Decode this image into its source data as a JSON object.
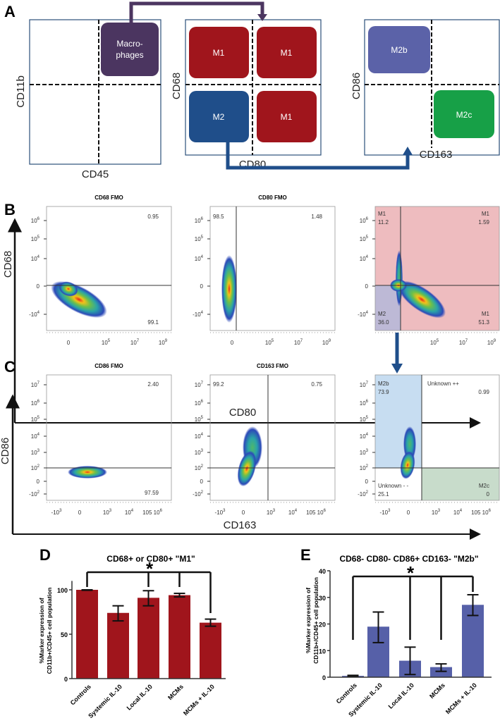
{
  "panel_a": {
    "label": "A",
    "gate1": {
      "ylabel": "CD11b",
      "xlabel": "CD45",
      "box": "Macro-\nphages"
    },
    "gate2": {
      "ylabel": "CD68",
      "xlabel": "CD80",
      "boxes": [
        "M1",
        "M1",
        "M2",
        "M1"
      ]
    },
    "gate3": {
      "ylabel": "CD86",
      "xlabel": "CD163",
      "boxes": [
        "M2b",
        "M2c"
      ]
    },
    "colors": {
      "macrophage": "#4b3560",
      "m1": "#a0151c",
      "m2": "#1f4e8a",
      "m2b": "#5b62a8",
      "m2c": "#17a047"
    }
  },
  "panel_b": {
    "label": "B",
    "ylabel": "CD68",
    "xlabel": "CD80",
    "yticks": [
      [
        "10",
        "6"
      ],
      [
        "10",
        "5"
      ],
      [
        "10",
        "4"
      ],
      [
        "0",
        ""
      ],
      [
        "-10",
        "4"
      ]
    ],
    "xticks": [
      [
        "0",
        ""
      ],
      [
        "10",
        "5"
      ],
      [
        "10",
        "7"
      ],
      [
        "10",
        "9"
      ]
    ],
    "plots": [
      {
        "title": "CD68 FMO",
        "q": [
          "0.95",
          "99.1"
        ]
      },
      {
        "title": "CD80 FMO",
        "q": [
          "98.5",
          "1.48"
        ]
      },
      {
        "title": "",
        "q": [
          "M1",
          "11.2",
          "M1",
          "1.59",
          "M2",
          "36.0",
          "M1",
          "51.3"
        ]
      }
    ]
  },
  "panel_c": {
    "label": "C",
    "ylabel": "CD86",
    "xlabel": "CD163",
    "yticks": [
      [
        "10",
        "7"
      ],
      [
        "10",
        "6"
      ],
      [
        "10",
        "5"
      ],
      [
        "10",
        "4"
      ],
      [
        "10",
        "3"
      ],
      [
        "10",
        "2"
      ],
      [
        "0",
        ""
      ],
      [
        "-10",
        "2"
      ]
    ],
    "xticks": [
      [
        "-10",
        "3"
      ],
      [
        "0",
        ""
      ],
      [
        "10",
        "3"
      ],
      [
        "10",
        "4"
      ],
      [
        "10",
        "5"
      ],
      [
        "10",
        "6"
      ]
    ],
    "plots": [
      {
        "title": "CD86 FMO",
        "q": [
          "2.40",
          "97.59"
        ]
      },
      {
        "title": "CD163 FMO",
        "q": [
          "99.2",
          "0.75"
        ]
      },
      {
        "title": "",
        "q": [
          "M2b",
          "73.9",
          "Unknown ++",
          "0.99",
          "Unknown - -",
          "25.1",
          "M2c",
          "0"
        ]
      }
    ]
  },
  "chart_data": [
    {
      "panel": "D",
      "type": "bar",
      "title": "CD68+ or CD80+ \"M1\"",
      "ylabel": "%Marker expression of\nCD11b+/CD45+ cell population",
      "categories": [
        "Controls",
        "Systemic IL-10",
        "Local IL-10",
        "MCMs",
        "MCMs + IL-10"
      ],
      "values": [
        100,
        74,
        91,
        94,
        63
      ],
      "err_low": [
        99.5,
        65,
        82,
        92,
        59
      ],
      "err_high": [
        100,
        82,
        99,
        96,
        67
      ],
      "ylim": [
        0,
        110
      ],
      "yticks": [
        0,
        50,
        100
      ],
      "color": "#a0151c",
      "significance": {
        "marker": "*",
        "groups": [
          0,
          2,
          3,
          4
        ]
      }
    },
    {
      "panel": "E",
      "type": "bar",
      "title": "CD68- CD80- CD86+ CD163- \"M2b\"",
      "ylabel": "%Marker expression of\nCD11b+/CD45+ cell population",
      "categories": [
        "Controls",
        "Systemic IL-10",
        "Local IL-10",
        "MCMs",
        "MCMs + IL-10"
      ],
      "values": [
        0.5,
        19,
        6.2,
        3.8,
        27.2
      ],
      "err_low": [
        0.3,
        13,
        1,
        2.2,
        23.2
      ],
      "err_high": [
        0.7,
        24.5,
        11.3,
        5,
        31
      ],
      "ylim": [
        0,
        40
      ],
      "yticks": [
        0,
        10,
        20,
        30,
        40
      ],
      "color": "#5660a8",
      "significance": {
        "marker": "*",
        "groups": [
          0,
          2,
          3,
          4
        ]
      }
    }
  ],
  "labels": {
    "d": "D",
    "e": "E"
  }
}
